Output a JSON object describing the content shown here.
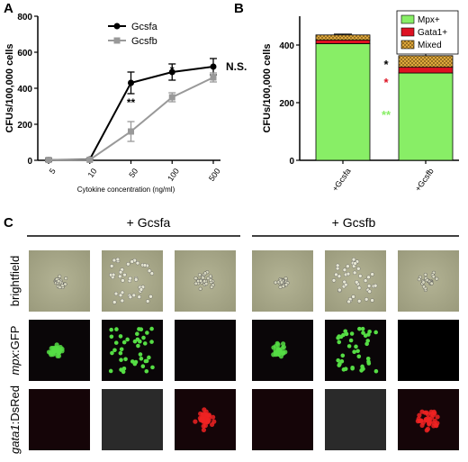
{
  "panels": {
    "a": "A",
    "b": "B",
    "c": "C"
  },
  "chart_data": [
    {
      "type": "line",
      "panel": "A",
      "ylabel": "CFUs/100,000 cells",
      "xlabel": "Cytokine concentration (ng/ml)",
      "categories": [
        "5",
        "10",
        "50",
        "100",
        "500"
      ],
      "ylim": [
        0,
        800
      ],
      "yticks": [
        "0",
        "200",
        "400",
        "600",
        "800"
      ],
      "series": [
        {
          "name": "Gcsfa",
          "color": "#000000",
          "marker": "circle",
          "values": [
            2,
            5,
            430,
            490,
            520
          ],
          "errors": [
            8,
            6,
            60,
            45,
            45
          ]
        },
        {
          "name": "Gcsfb",
          "color": "#999999",
          "marker": "square",
          "values": [
            2,
            3,
            160,
            350,
            460
          ],
          "errors": [
            5,
            6,
            55,
            25,
            25
          ]
        }
      ],
      "annotations": [
        {
          "text": "**",
          "category": "50"
        },
        {
          "text": "*",
          "category": "100"
        },
        {
          "text": "N.S.",
          "category": "500"
        }
      ],
      "legend": "top-left"
    },
    {
      "type": "bar",
      "panel": "B",
      "stacked": true,
      "ylabel": "CFUs/100,000 cells",
      "categories": [
        "+Gcsfa",
        "+Gcsfb"
      ],
      "ylim": [
        0,
        500
      ],
      "yticks": [
        "0",
        "200",
        "400"
      ],
      "series": [
        {
          "name": "Mpx+",
          "color": "#88ee66",
          "values": [
            405,
            303
          ]
        },
        {
          "name": "Gata1+",
          "color": "#dd1122",
          "values": [
            12,
            20
          ]
        },
        {
          "name": "Mixed",
          "color": "#e8b040",
          "values": [
            18,
            40
          ]
        }
      ],
      "total_errors": [
        3,
        8
      ],
      "annotations": [
        {
          "text": "*",
          "color": "#000000"
        },
        {
          "text": "*",
          "color": "#dd1122"
        },
        {
          "text": "**",
          "color": "#88ee66"
        }
      ],
      "legend": "top-right"
    }
  ],
  "panel_c": {
    "group_left": "+ Gcsfa",
    "group_right": "+ Gcsfb",
    "row_labels": [
      {
        "parts": [
          {
            "text": "brightfield",
            "italic": false
          }
        ]
      },
      {
        "parts": [
          {
            "text": "mpx",
            "italic": true
          },
          {
            "text": ":GFP",
            "italic": false
          }
        ]
      },
      {
        "parts": [
          {
            "text": "gata1",
            "italic": true
          },
          {
            "text": ":DsRed",
            "italic": false
          }
        ]
      }
    ],
    "colors": {
      "brightfield": "#9a9a7c",
      "gfp": "#55dd44",
      "dsred": "#ee2222"
    }
  }
}
